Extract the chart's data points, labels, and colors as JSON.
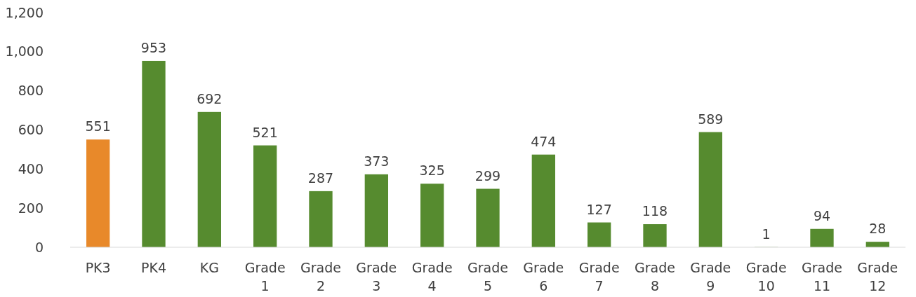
{
  "chart_data": {
    "type": "bar",
    "categories": [
      "PK3",
      "PK4",
      "KG",
      "Grade 1",
      "Grade 2",
      "Grade 3",
      "Grade 4",
      "Grade 5",
      "Grade 6",
      "Grade 7",
      "Grade 8",
      "Grade 9",
      "Grade 10",
      "Grade 11",
      "Grade 12"
    ],
    "values": [
      551,
      953,
      692,
      521,
      287,
      373,
      325,
      299,
      474,
      127,
      118,
      589,
      1,
      94,
      28
    ],
    "colors": [
      "#e8892a",
      "#568b2f",
      "#568b2f",
      "#568b2f",
      "#568b2f",
      "#568b2f",
      "#568b2f",
      "#568b2f",
      "#568b2f",
      "#568b2f",
      "#568b2f",
      "#568b2f",
      "#568b2f",
      "#568b2f",
      "#568b2f"
    ],
    "ylim": [
      0,
      1200
    ],
    "yticks": [
      {
        "value": 0,
        "label": "0"
      },
      {
        "value": 200,
        "label": "200"
      },
      {
        "value": 400,
        "label": "400"
      },
      {
        "value": 600,
        "label": "600"
      },
      {
        "value": 800,
        "label": "800"
      },
      {
        "value": 1000,
        "label": "1,000"
      },
      {
        "value": 1200,
        "label": "1,200"
      }
    ],
    "data_labels": true
  }
}
